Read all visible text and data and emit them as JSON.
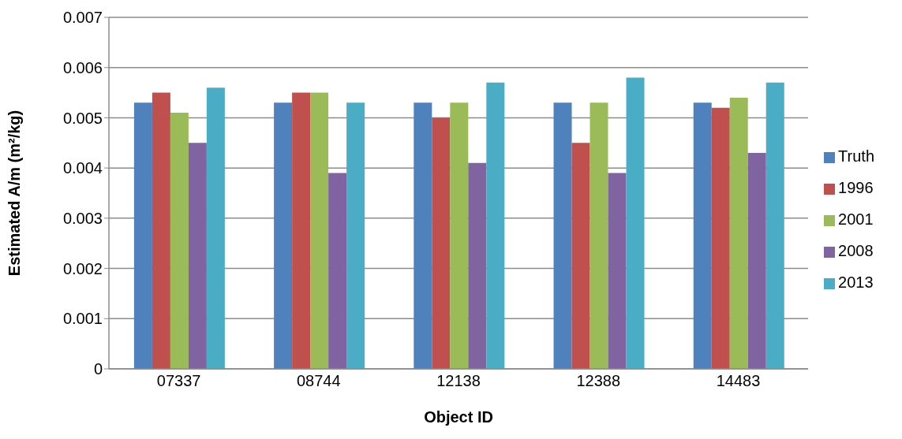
{
  "chart_data": {
    "type": "bar",
    "xlabel": "Object ID",
    "ylabel": "Estimated A/m (m²/kg)",
    "categories": [
      "07337",
      "08744",
      "12138",
      "12388",
      "14483"
    ],
    "series": [
      {
        "name": "Truth",
        "color": "#4f81bd",
        "values": [
          0.0053,
          0.0053,
          0.0053,
          0.0053,
          0.0053
        ]
      },
      {
        "name": "1996",
        "color": "#c0504d",
        "values": [
          0.0055,
          0.0055,
          0.005,
          0.0045,
          0.0052
        ]
      },
      {
        "name": "2001",
        "color": "#9bbb59",
        "values": [
          0.0051,
          0.0055,
          0.0053,
          0.0053,
          0.0054
        ]
      },
      {
        "name": "2008",
        "color": "#8064a2",
        "values": [
          0.0045,
          0.0039,
          0.0041,
          0.0039,
          0.0043
        ]
      },
      {
        "name": "2013",
        "color": "#4bacc6",
        "values": [
          0.0056,
          0.0053,
          0.0057,
          0.0058,
          0.0057
        ]
      }
    ],
    "ylim": [
      0,
      0.007
    ],
    "yticks": [
      0,
      0.001,
      0.002,
      0.003,
      0.004,
      0.005,
      0.006,
      0.007
    ],
    "grid": "y",
    "legend": "right"
  }
}
